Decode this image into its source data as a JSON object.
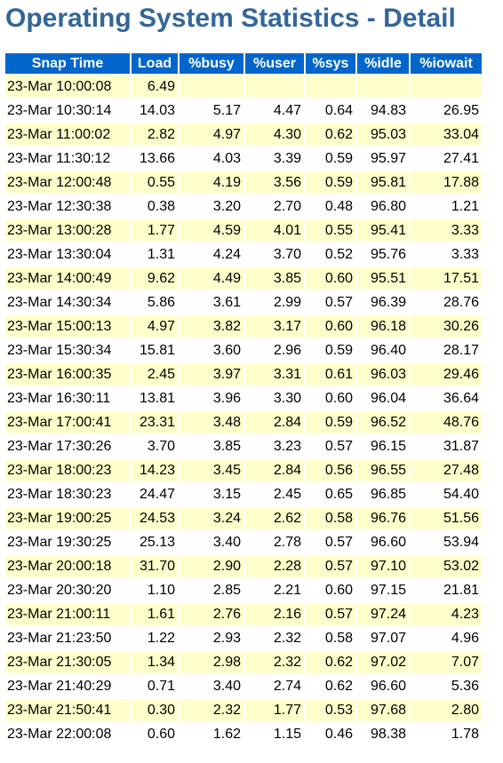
{
  "title": "Operating System Statistics - Detail",
  "table": {
    "columns": [
      "Snap Time",
      "Load",
      "%busy",
      "%user",
      "%sys",
      "%idle",
      "%iowait"
    ],
    "rows": [
      [
        "23-Mar 10:00:08",
        "6.49",
        "",
        "",
        "",
        "",
        ""
      ],
      [
        "23-Mar 10:30:14",
        "14.03",
        "5.17",
        "4.47",
        "0.64",
        "94.83",
        "26.95"
      ],
      [
        "23-Mar 11:00:02",
        "2.82",
        "4.97",
        "4.30",
        "0.62",
        "95.03",
        "33.04"
      ],
      [
        "23-Mar 11:30:12",
        "13.66",
        "4.03",
        "3.39",
        "0.59",
        "95.97",
        "27.41"
      ],
      [
        "23-Mar 12:00:48",
        "0.55",
        "4.19",
        "3.56",
        "0.59",
        "95.81",
        "17.88"
      ],
      [
        "23-Mar 12:30:38",
        "0.38",
        "3.20",
        "2.70",
        "0.48",
        "96.80",
        "1.21"
      ],
      [
        "23-Mar 13:00:28",
        "1.77",
        "4.59",
        "4.01",
        "0.55",
        "95.41",
        "3.33"
      ],
      [
        "23-Mar 13:30:04",
        "1.31",
        "4.24",
        "3.70",
        "0.52",
        "95.76",
        "3.33"
      ],
      [
        "23-Mar 14:00:49",
        "9.62",
        "4.49",
        "3.85",
        "0.60",
        "95.51",
        "17.51"
      ],
      [
        "23-Mar 14:30:34",
        "5.86",
        "3.61",
        "2.99",
        "0.57",
        "96.39",
        "28.76"
      ],
      [
        "23-Mar 15:00:13",
        "4.97",
        "3.82",
        "3.17",
        "0.60",
        "96.18",
        "30.26"
      ],
      [
        "23-Mar 15:30:34",
        "15.81",
        "3.60",
        "2.96",
        "0.59",
        "96.40",
        "28.17"
      ],
      [
        "23-Mar 16:00:35",
        "2.45",
        "3.97",
        "3.31",
        "0.61",
        "96.03",
        "29.46"
      ],
      [
        "23-Mar 16:30:11",
        "13.81",
        "3.96",
        "3.30",
        "0.60",
        "96.04",
        "36.64"
      ],
      [
        "23-Mar 17:00:41",
        "23.31",
        "3.48",
        "2.84",
        "0.59",
        "96.52",
        "48.76"
      ],
      [
        "23-Mar 17:30:26",
        "3.70",
        "3.85",
        "3.23",
        "0.57",
        "96.15",
        "31.87"
      ],
      [
        "23-Mar 18:00:23",
        "14.23",
        "3.45",
        "2.84",
        "0.56",
        "96.55",
        "27.48"
      ],
      [
        "23-Mar 18:30:23",
        "24.47",
        "3.15",
        "2.45",
        "0.65",
        "96.85",
        "54.40"
      ],
      [
        "23-Mar 19:00:25",
        "24.53",
        "3.24",
        "2.62",
        "0.58",
        "96.76",
        "51.56"
      ],
      [
        "23-Mar 19:30:25",
        "25.13",
        "3.40",
        "2.78",
        "0.57",
        "96.60",
        "53.94"
      ],
      [
        "23-Mar 20:00:18",
        "31.70",
        "2.90",
        "2.28",
        "0.57",
        "97.10",
        "53.02"
      ],
      [
        "23-Mar 20:30:20",
        "1.10",
        "2.85",
        "2.21",
        "0.60",
        "97.15",
        "21.81"
      ],
      [
        "23-Mar 21:00:11",
        "1.61",
        "2.76",
        "2.16",
        "0.57",
        "97.24",
        "4.23"
      ],
      [
        "23-Mar 21:23:50",
        "1.22",
        "2.93",
        "2.32",
        "0.58",
        "97.07",
        "4.96"
      ],
      [
        "23-Mar 21:30:05",
        "1.34",
        "2.98",
        "2.32",
        "0.62",
        "97.02",
        "7.07"
      ],
      [
        "23-Mar 21:40:29",
        "0.71",
        "3.40",
        "2.74",
        "0.62",
        "96.60",
        "5.36"
      ],
      [
        "23-Mar 21:50:41",
        "0.30",
        "2.32",
        "1.77",
        "0.53",
        "97.68",
        "2.80"
      ],
      [
        "23-Mar 22:00:08",
        "0.60",
        "1.62",
        "1.15",
        "0.46",
        "98.38",
        "1.78"
      ]
    ]
  },
  "colors": {
    "title": "#336699",
    "header_bg": "#0066cc",
    "header_text": "#ffffff",
    "row_highlight": "#ffffcc",
    "row_plain": "#ffffff"
  }
}
